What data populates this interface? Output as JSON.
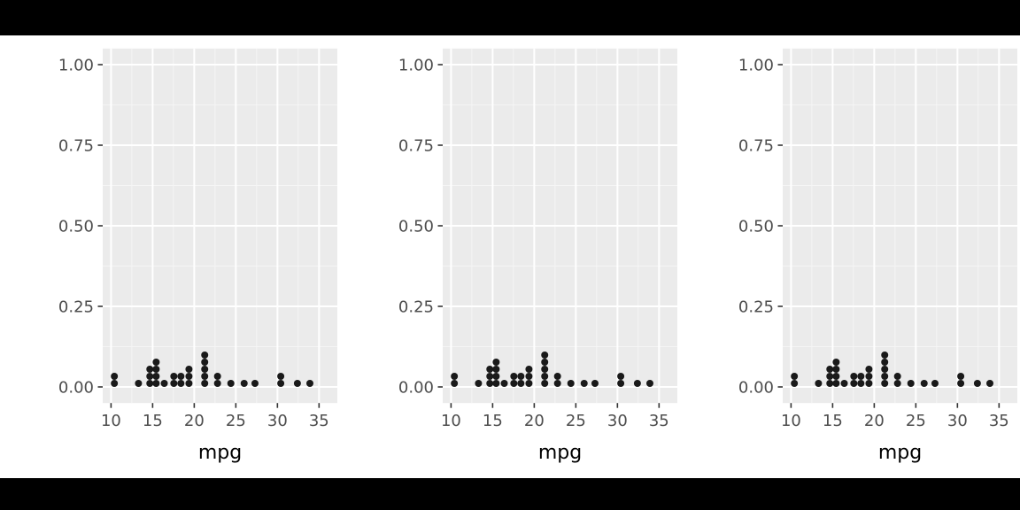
{
  "page": {
    "background": "#ffffff",
    "letterbox_color": "#000000"
  },
  "chart_data": {
    "type": "dotplot",
    "panels": 3,
    "title": "",
    "xlabel": "mpg",
    "ylabel": "",
    "x_ticks": [
      10,
      15,
      20,
      25,
      30,
      35
    ],
    "x_minor_ticks": [
      12.5,
      17.5,
      22.5,
      27.5,
      32.5
    ],
    "y_ticks": [
      {
        "value": 1.0,
        "label": "1.00"
      },
      {
        "value": 0.75,
        "label": "0.75"
      },
      {
        "value": 0.5,
        "label": "0.50"
      },
      {
        "value": 0.25,
        "label": "0.25"
      },
      {
        "value": 0.0,
        "label": "0.00"
      }
    ],
    "y_minor_ticks": [
      0.125,
      0.375,
      0.625,
      0.875
    ],
    "xlim": [
      9.0,
      37.2
    ],
    "ylim": [
      -0.05,
      1.05
    ],
    "binwidth": 0.8,
    "values": [
      21.0,
      21.0,
      22.8,
      21.4,
      18.7,
      18.1,
      14.3,
      24.4,
      22.8,
      19.2,
      17.8,
      16.4,
      17.3,
      15.2,
      10.4,
      10.4,
      14.7,
      32.4,
      30.4,
      33.9,
      21.5,
      15.5,
      15.2,
      13.3,
      19.2,
      27.3,
      26.0,
      30.4,
      15.8,
      19.7,
      15.0,
      21.4
    ],
    "legend": "none",
    "grid": "on",
    "colors": {
      "panel_bg": "#ebebeb",
      "grid_major": "#ffffff",
      "grid_minor": "#f5f5f5",
      "dot": "#1a1a1a",
      "axis_text": "#4d4d4d",
      "axis_title": "#000000",
      "tick_mark": "#333333"
    }
  }
}
